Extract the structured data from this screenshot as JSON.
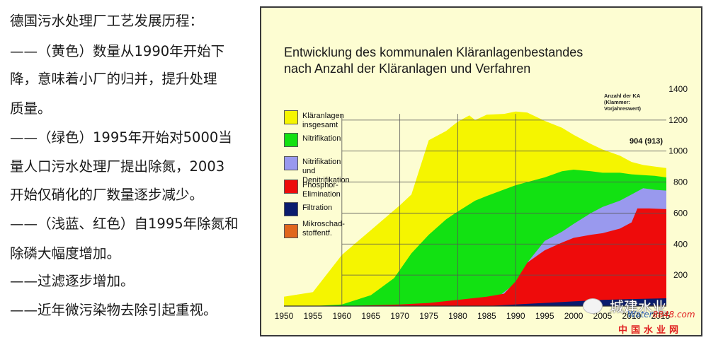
{
  "left_text": {
    "lines": [
      "德国污水处理厂工艺发展历程：",
      "——（黄色）数量从1990年开始下",
      "降，意味着小厂的归并，提升处理",
      "质量。",
      "——（绿色）1995年开始对5000当",
      "量人口污水处理厂提出除氮，2003",
      "开始仅硝化的厂数量逐步减少。",
      "——（浅蓝、红色）自1995年除氮和",
      "除磷大幅度增加。",
      "——过滤逐步增加。",
      "——近年微污染物去除引起重视。"
    ]
  },
  "chart_data": {
    "type": "area",
    "title_lines": [
      "Entwicklung des kommunalen Kläranlagenbestandes",
      "nach Anzahl der Kläranlagen und Verfahren"
    ],
    "y_axis_header": "Anzahl der KA\n(Klammer:\nVorjahreswert)",
    "annotation": {
      "text": "904 (913)",
      "x": 2010,
      "y": 1000
    },
    "xlim": [
      1950,
      2016
    ],
    "ylim": [
      0,
      1400
    ],
    "x_ticks": [
      1950,
      1955,
      1960,
      1965,
      1970,
      1975,
      1980,
      1985,
      1990,
      1995,
      2000,
      2005,
      2010,
      2015
    ],
    "y_ticks": [
      200,
      400,
      600,
      800,
      1000,
      1200,
      1400
    ],
    "grid": true,
    "legend_position": "left",
    "series": [
      {
        "name": "Kläranlagen insgesamt",
        "color": "#f5f500",
        "points": [
          [
            1950,
            60
          ],
          [
            1955,
            90
          ],
          [
            1960,
            330
          ],
          [
            1965,
            490
          ],
          [
            1970,
            650
          ],
          [
            1972,
            720
          ],
          [
            1975,
            1070
          ],
          [
            1978,
            1130
          ],
          [
            1980,
            1190
          ],
          [
            1982,
            1230
          ],
          [
            1983,
            1200
          ],
          [
            1985,
            1235
          ],
          [
            1988,
            1240
          ],
          [
            1990,
            1255
          ],
          [
            1992,
            1248
          ],
          [
            1995,
            1195
          ],
          [
            1998,
            1150
          ],
          [
            2000,
            1105
          ],
          [
            2003,
            1045
          ],
          [
            2005,
            1010
          ],
          [
            2008,
            970
          ],
          [
            2010,
            930
          ],
          [
            2012,
            910
          ],
          [
            2014,
            900
          ],
          [
            2016,
            890
          ]
        ]
      },
      {
        "name": "Nitrifikation",
        "color": "#12e112",
        "points": [
          [
            1955,
            0
          ],
          [
            1960,
            10
          ],
          [
            1965,
            70
          ],
          [
            1969,
            180
          ],
          [
            1972,
            340
          ],
          [
            1975,
            460
          ],
          [
            1978,
            560
          ],
          [
            1980,
            610
          ],
          [
            1983,
            680
          ],
          [
            1985,
            710
          ],
          [
            1990,
            780
          ],
          [
            1992,
            800
          ],
          [
            1995,
            830
          ],
          [
            1998,
            870
          ],
          [
            2000,
            880
          ],
          [
            2003,
            870
          ],
          [
            2005,
            860
          ],
          [
            2008,
            860
          ],
          [
            2010,
            850
          ],
          [
            2012,
            845
          ],
          [
            2014,
            840
          ],
          [
            2016,
            830
          ]
        ]
      },
      {
        "name": "Nitrifikation und Denitrifikation",
        "color": "#9999ee",
        "points": [
          [
            1985,
            0
          ],
          [
            1987,
            60
          ],
          [
            1990,
            150
          ],
          [
            1992,
            280
          ],
          [
            1995,
            420
          ],
          [
            1998,
            480
          ],
          [
            2000,
            530
          ],
          [
            2003,
            600
          ],
          [
            2005,
            640
          ],
          [
            2008,
            680
          ],
          [
            2010,
            720
          ],
          [
            2012,
            760
          ],
          [
            2014,
            750
          ],
          [
            2016,
            745
          ]
        ]
      },
      {
        "name": "Phosphor-Elimination",
        "color": "#ee0b0b",
        "points": [
          [
            1960,
            0
          ],
          [
            1970,
            10
          ],
          [
            1975,
            20
          ],
          [
            1980,
            40
          ],
          [
            1985,
            60
          ],
          [
            1988,
            80
          ],
          [
            1990,
            160
          ],
          [
            1992,
            280
          ],
          [
            1995,
            360
          ],
          [
            1998,
            410
          ],
          [
            2000,
            440
          ],
          [
            2003,
            460
          ],
          [
            2005,
            470
          ],
          [
            2008,
            500
          ],
          [
            2010,
            540
          ],
          [
            2011,
            630
          ],
          [
            2013,
            630
          ],
          [
            2016,
            625
          ]
        ]
      },
      {
        "name": "Filtration",
        "color": "#0a1c6e",
        "points": [
          [
            1985,
            0
          ],
          [
            1990,
            10
          ],
          [
            1995,
            20
          ],
          [
            2000,
            30
          ],
          [
            2005,
            40
          ],
          [
            2010,
            45
          ],
          [
            2016,
            50
          ]
        ]
      },
      {
        "name": "Mikroschad-\nstoffentf.",
        "color": "#e0661c",
        "points": [
          [
            2008,
            0
          ],
          [
            2012,
            2
          ],
          [
            2016,
            5
          ]
        ]
      }
    ]
  },
  "watermark": {
    "logo_text": "城建水业",
    "url_prefix": "Water",
    "url_suffix": "8848.com",
    "site_name": "中国水业网"
  }
}
